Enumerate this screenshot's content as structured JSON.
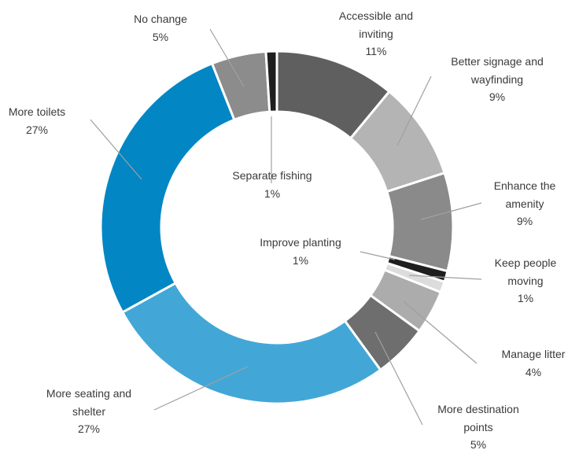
{
  "chart_data": {
    "type": "donut",
    "categories": [
      "Accessible and inviting",
      "Better signage and wayfinding",
      "Enhance the amenity",
      "Improve planting",
      "Keep people moving",
      "Manage litter",
      "More destination points",
      "More seating and shelter",
      "More toilets",
      "No change",
      "Separate fishing"
    ],
    "values": [
      11,
      9,
      9,
      1,
      1,
      4,
      5,
      27,
      27,
      5,
      1
    ],
    "value_labels": [
      "11%",
      "9%",
      "9%",
      "1%",
      "1%",
      "4%",
      "5%",
      "27%",
      "27%",
      "5%",
      "1%"
    ],
    "colors": [
      "#5f5f5f",
      "#b4b4b4",
      "#8a8a8a",
      "#1e1e1e",
      "#dcdcdc",
      "#acacac",
      "#6e6e6e",
      "#42a7d6",
      "#0386c4",
      "#8c8c8c",
      "#1e1e1e"
    ]
  }
}
